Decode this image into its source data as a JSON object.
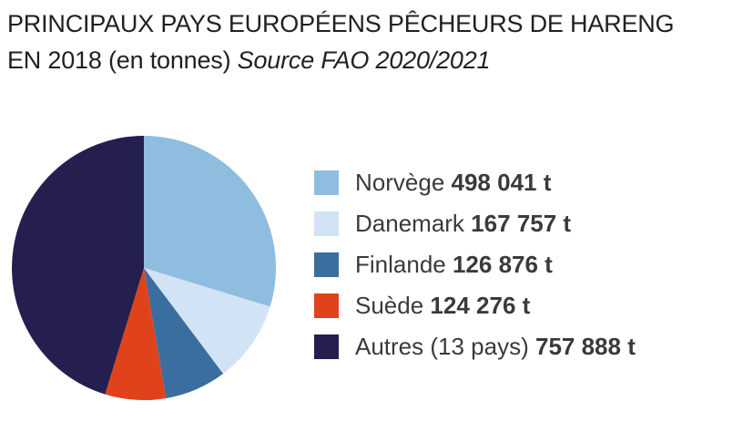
{
  "header": {
    "title_main": "PRINCIPAUX PAYS EUROPÉENS PÊCHEURS DE HARENG",
    "title_line2": "EN 2018 (en tonnes)",
    "source": "Source FAO 2020/2021"
  },
  "chart_data": {
    "type": "pie",
    "title": "PRINCIPAUX PAYS EUROPÉENS PÊCHEURS DE HARENG EN 2018 (en tonnes)",
    "source": "Source FAO 2020/2021",
    "unit": "t",
    "legend_position": "right",
    "slices": [
      {
        "name": "Norvège",
        "value": 498041,
        "value_label": "498 041 t",
        "color": "#8fbde0"
      },
      {
        "name": "Danemark",
        "value": 167757,
        "value_label": "167 757 t",
        "color": "#d2e3f5"
      },
      {
        "name": "Finlande",
        "value": 126876,
        "value_label": "126 876 t",
        "color": "#3a6e9e"
      },
      {
        "name": "Suède",
        "value": 124276,
        "value_label": "124 276 t",
        "color": "#e0421c"
      },
      {
        "name": "Autres (13 pays)",
        "value": 757888,
        "value_label": "757 888 t",
        "color": "#241f4f"
      }
    ]
  }
}
